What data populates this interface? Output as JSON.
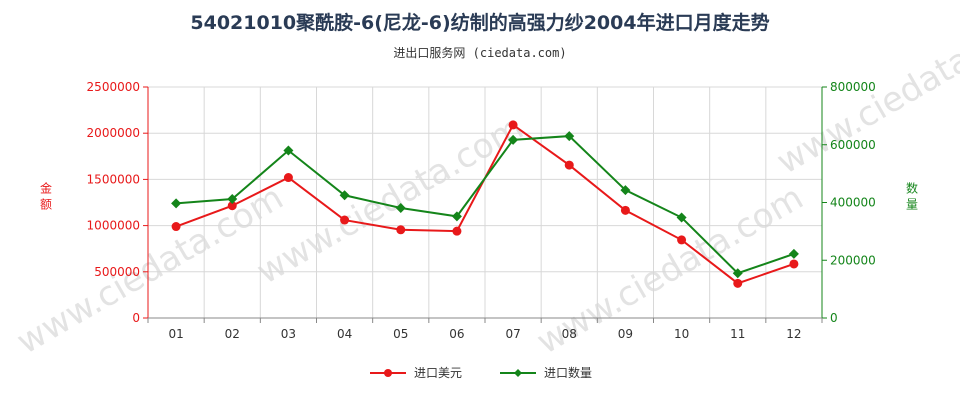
{
  "title": "54021010聚酰胺-6(尼龙-6)纺制的高强力纱2004年进口月度走势",
  "subtitle": "进出口服务网 (ciedata.com)",
  "watermark": "www.ciedata.com",
  "colors": {
    "import_usd": "#e8191a",
    "import_qty": "#14851a",
    "grid": "#d8d8d8"
  },
  "chart_data": {
    "type": "line",
    "categories": [
      "01",
      "02",
      "03",
      "04",
      "05",
      "06",
      "07",
      "08",
      "09",
      "10",
      "11",
      "12"
    ],
    "series": [
      {
        "name": "进口美元",
        "axis": "left",
        "values": [
          990000,
          1215000,
          1520000,
          1060000,
          955000,
          940000,
          2090000,
          1655000,
          1165000,
          845000,
          375000,
          585000
        ]
      },
      {
        "name": "进口数量",
        "axis": "right",
        "values": [
          397000,
          412000,
          580000,
          425000,
          381000,
          352000,
          617000,
          630000,
          443000,
          348000,
          155000,
          222000
        ]
      }
    ],
    "ylabel_left": "金额",
    "ylabel_right": "数量",
    "ylim_left": [
      0,
      2500000
    ],
    "yticks_left": [
      "0",
      "500000",
      "1000000",
      "1500000",
      "2000000",
      "2500000"
    ],
    "ylim_right": [
      0,
      800000
    ],
    "yticks_right": [
      "0",
      "200000",
      "400000",
      "600000",
      "800000"
    ],
    "grid": true,
    "legend_position": "bottom-center"
  }
}
